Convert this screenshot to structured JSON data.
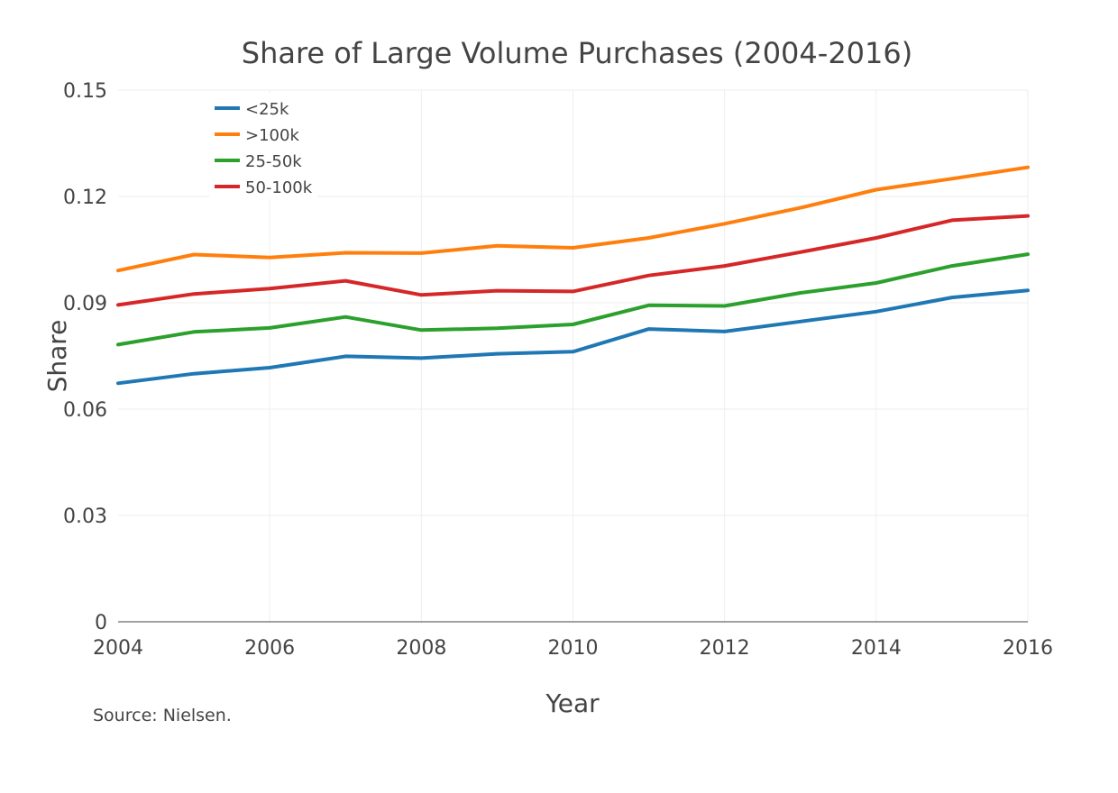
{
  "chart_data": {
    "type": "line",
    "title": "Share of Large Volume Purchases (2004-2016)",
    "xlabel": "Year",
    "ylabel": "Share",
    "xlim": [
      2004,
      2016
    ],
    "ylim": [
      0,
      0.15
    ],
    "x_ticks": [
      2004,
      2006,
      2008,
      2010,
      2012,
      2014,
      2016
    ],
    "y_ticks": [
      0,
      0.03,
      0.06,
      0.09,
      0.12,
      0.15
    ],
    "y_tick_labels": [
      "0",
      "0.03",
      "0.06",
      "0.09",
      "0.12",
      "0.15"
    ],
    "x": [
      2004,
      2005,
      2006,
      2007,
      2008,
      2009,
      2010,
      2011,
      2012,
      2013,
      2014,
      2015,
      2016
    ],
    "grid": true,
    "legend_position": "top-left",
    "series": [
      {
        "name": "<25k",
        "color": "#1f77b4",
        "values": [
          0.0673,
          0.07,
          0.0717,
          0.0749,
          0.0744,
          0.0756,
          0.0762,
          0.0826,
          0.0819,
          0.0847,
          0.0875,
          0.0915,
          0.0935
        ]
      },
      {
        "name": ">100k",
        "color": "#ff7f0e",
        "values": [
          0.0991,
          0.1036,
          0.1028,
          0.1041,
          0.104,
          0.1061,
          0.1055,
          0.1083,
          0.1123,
          0.1168,
          0.1219,
          0.125,
          0.1282
        ]
      },
      {
        "name": "25-50k",
        "color": "#2ca02c",
        "values": [
          0.0782,
          0.0818,
          0.0829,
          0.086,
          0.0823,
          0.0828,
          0.0839,
          0.0893,
          0.0891,
          0.0928,
          0.0956,
          0.1004,
          0.1037
        ]
      },
      {
        "name": "50-100k",
        "color": "#d62728",
        "values": [
          0.0894,
          0.0925,
          0.094,
          0.0962,
          0.0922,
          0.0934,
          0.0932,
          0.0977,
          0.1004,
          0.1043,
          0.1083,
          0.1133,
          0.1145
        ]
      }
    ],
    "annotation": "Source: Nielsen."
  }
}
